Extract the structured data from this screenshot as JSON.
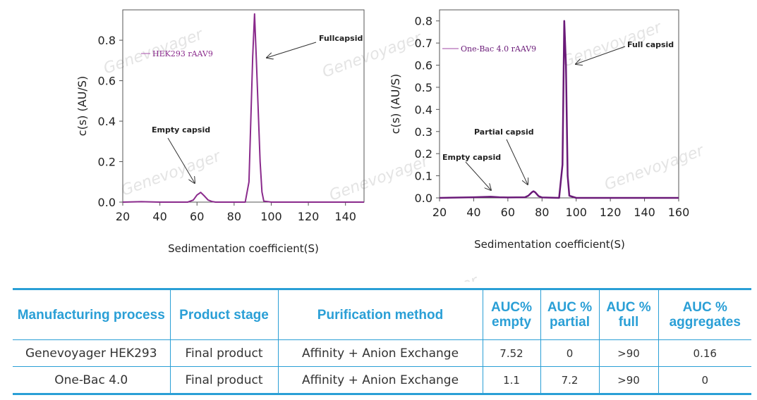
{
  "chart_data": [
    {
      "type": "line",
      "legend": "HEK293 rAAV9",
      "legend_color": "#b56cb8",
      "line_color": "#8a2a8c",
      "ylabel": "c(s) (AU/S)",
      "xlabel": "Sedimentation coefficient(S)",
      "xlim": [
        20,
        150
      ],
      "ylim": [
        0,
        0.95
      ],
      "xticks": [
        20,
        40,
        60,
        80,
        100,
        120,
        140
      ],
      "yticks": [
        0.0,
        0.2,
        0.4,
        0.6,
        0.8
      ],
      "ytick_labels": [
        "0.0",
        "0.2",
        "0.4",
        "0.6",
        "0.8"
      ],
      "x": [
        20,
        30,
        40,
        50,
        55,
        58,
        60,
        62,
        64,
        66,
        68,
        70,
        80,
        86,
        88,
        90,
        91,
        92,
        94,
        95,
        96,
        100,
        150
      ],
      "y": [
        0.0,
        0.002,
        0.0,
        0.0,
        0.0,
        0.01,
        0.035,
        0.048,
        0.03,
        0.01,
        0.003,
        0.0,
        0.0,
        0.0,
        0.1,
        0.72,
        0.93,
        0.7,
        0.2,
        0.05,
        0.005,
        0.0,
        0.0
      ],
      "annotations": [
        {
          "text": "Empty capsid",
          "x": 62,
          "y": 0.048
        },
        {
          "text": "Fullcapsid",
          "x": 92,
          "y": 0.72
        }
      ]
    },
    {
      "type": "line",
      "legend": "One-Bac 4.0 rAAV9",
      "legend_color": "#b56cb8",
      "line_color": "#6a1a78",
      "ylabel": "c(s) (AU/S)",
      "xlabel": "Sedimentation coefficient(S)",
      "xlim": [
        20,
        160
      ],
      "ylim": [
        0,
        0.85
      ],
      "xticks": [
        20,
        40,
        60,
        80,
        100,
        120,
        140,
        160
      ],
      "yticks": [
        0.0,
        0.1,
        0.2,
        0.3,
        0.4,
        0.5,
        0.6,
        0.7,
        0.8
      ],
      "ytick_labels": [
        "0.0",
        "0.1",
        "0.2",
        "0.3",
        "0.4",
        "0.5",
        "0.6",
        "0.7",
        "0.8"
      ],
      "x": [
        20,
        40,
        50,
        55,
        60,
        70,
        72,
        74,
        75,
        76,
        78,
        80,
        90,
        92,
        93,
        94,
        95,
        96,
        100,
        160
      ],
      "y": [
        0.0,
        0.003,
        0.005,
        0.003,
        0.002,
        0.003,
        0.01,
        0.025,
        0.03,
        0.025,
        0.008,
        0.002,
        0.0,
        0.15,
        0.8,
        0.6,
        0.1,
        0.01,
        0.0,
        0.0
      ],
      "annotations": [
        {
          "text": "Empty capsid",
          "x": 50,
          "y": 0.005
        },
        {
          "text": "Partial capsid",
          "x": 76,
          "y": 0.03
        },
        {
          "text": "Full capsid",
          "x": 94,
          "y": 0.6
        }
      ]
    }
  ],
  "watermark": "Genevoyager",
  "table": {
    "headers": [
      "Manufacturing process",
      "Product stage",
      "Purification method",
      "AUC% empty",
      "AUC % partial",
      "AUC % full",
      "AUC % aggregates"
    ],
    "rows": [
      [
        "Genevoyager HEK293",
        "Final product",
        "Affinity + Anion Exchange",
        "7.52",
        "0",
        ">90",
        "0.16"
      ],
      [
        "One-Bac 4.0",
        "Final product",
        "Affinity + Anion Exchange",
        "1.1",
        "7.2",
        ">90",
        "0"
      ]
    ]
  },
  "colors": {
    "accent": "#2a9fd6"
  }
}
